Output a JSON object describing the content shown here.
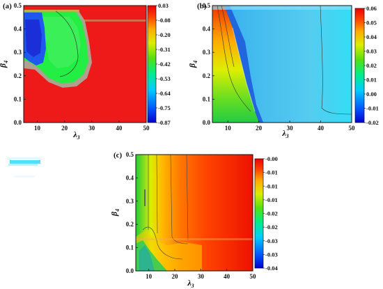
{
  "chart_data": [
    {
      "type": "heatmap",
      "panel_label": "(a)",
      "xlabel": "λ3",
      "ylabel": "β4",
      "xlim": [
        5,
        50
      ],
      "ylim": [
        0,
        0.5
      ],
      "xticks": [
        "10",
        "20",
        "30",
        "40",
        "50"
      ],
      "yticks": [
        "0.0",
        "0.1",
        "0.2",
        "0.3",
        "0.4",
        "0.5"
      ],
      "colorbar": {
        "ticks": [
          "0.03",
          "-0.08",
          "-0.20",
          "-0.31",
          "-0.42",
          "-0.53",
          "-0.64",
          "-0.75",
          "-0.87"
        ],
        "min": -0.87,
        "max": 0.03
      }
    },
    {
      "type": "heatmap",
      "panel_label": "(b)",
      "xlabel": "λ3",
      "ylabel": "β4",
      "xlim": [
        5,
        50
      ],
      "ylim": [
        0,
        0.5
      ],
      "xticks": [
        "10",
        "20",
        "30",
        "40",
        "50"
      ],
      "yticks": [
        "0.0",
        "0.1",
        "0.2",
        "0.3",
        "0.4",
        "0.5"
      ],
      "colorbar": {
        "ticks": [
          "0.06",
          "0.05",
          "0.04",
          "0.03",
          "0.02",
          "0.01",
          "0.00",
          "-0.01",
          "-0.02"
        ],
        "min": -0.02,
        "max": 0.06
      }
    },
    {
      "type": "heatmap",
      "panel_label": "(c)",
      "xlabel": "λ3",
      "ylabel": "β4",
      "xlim": [
        5,
        50
      ],
      "ylim": [
        0,
        0.5
      ],
      "xticks": [
        "10",
        "20",
        "30",
        "40",
        "50"
      ],
      "yticks": [
        "0.0",
        "0.1",
        "0.2",
        "0.3",
        "0.4",
        "0.5"
      ],
      "colorbar": {
        "ticks": [
          "-0.00",
          "-0.01",
          "-0.01",
          "-0.01",
          "-0.02",
          "-0.02",
          "-0.03",
          "-0.03",
          "-0.04"
        ],
        "min": -0.04,
        "max": 0.0
      }
    }
  ]
}
